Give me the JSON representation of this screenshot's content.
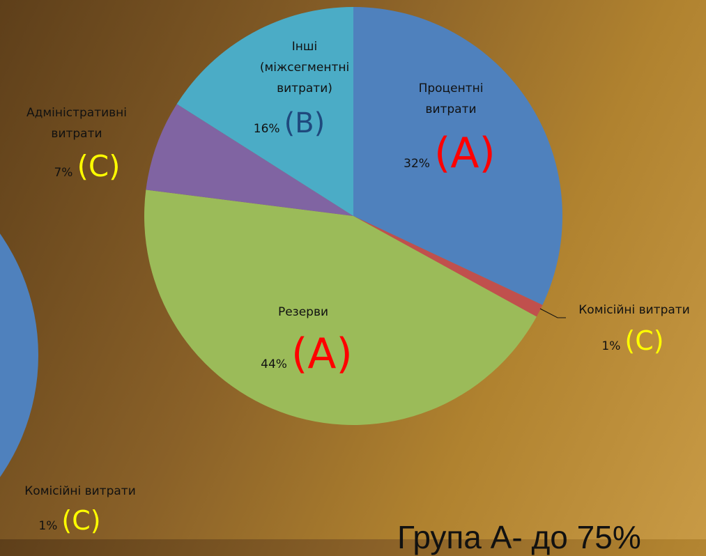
{
  "chart_data": [
    {
      "type": "pie",
      "categories": [
        "Процентні витрати",
        "Комісійні витрати",
        "Резерви",
        "Адміністративні витрати",
        "Інші (міжсегментні витрати)"
      ],
      "values": [
        32,
        1,
        44,
        7,
        16
      ],
      "value_labels": [
        "32%",
        "1%",
        "44%",
        "7%",
        "16%"
      ],
      "colors": [
        "#4f81bd",
        "#c0504d",
        "#9bbb59",
        "#8064a2",
        "#4bacc6"
      ],
      "groups": [
        "(A)",
        "(C)",
        "(A)",
        "(C)",
        "(B)"
      ],
      "group_colors": [
        "#ff0000",
        "#ffff00",
        "#ff0000",
        "#ffff00",
        "#1f497d"
      ]
    },
    {
      "type": "pie",
      "categories": [
        "Комісійні витрати"
      ],
      "values": [
        1
      ],
      "value_labels": [
        "1%"
      ],
      "colors": [
        "#c0504d"
      ],
      "groups": [
        "(C)"
      ],
      "group_colors": [
        "#ffff00"
      ]
    }
  ],
  "footer_text": "Група А- до 75%"
}
